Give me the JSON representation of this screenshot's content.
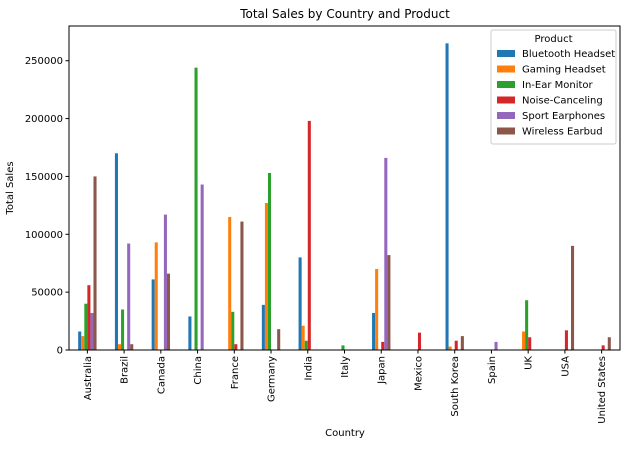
{
  "chart_data": {
    "type": "bar",
    "title": "Total Sales by Country and Product",
    "xlabel": "Country",
    "ylabel": "Total Sales",
    "ylim": [
      0,
      280000
    ],
    "yticks": [
      0,
      50000,
      100000,
      150000,
      200000,
      250000
    ],
    "ytick_labels": [
      "0",
      "50000",
      "100000",
      "150000",
      "200000",
      "250000"
    ],
    "grid": false,
    "legend_title": "Product",
    "legend_position": "top-right",
    "categories": [
      "Australia",
      "Brazil",
      "Canada",
      "China",
      "France",
      "Germany",
      "India",
      "Italy",
      "Japan",
      "Mexico",
      "South Korea",
      "Spain",
      "UK",
      "USA",
      "United States"
    ],
    "series": [
      {
        "name": "Bluetooth Headset",
        "color": "#1f77b4",
        "values": [
          16000,
          170000,
          61000,
          29000,
          0,
          39000,
          80000,
          0,
          32000,
          0,
          265000,
          0,
          0,
          0,
          0
        ]
      },
      {
        "name": "Gaming Headset",
        "color": "#ff7f0e",
        "values": [
          12000,
          5000,
          93000,
          0,
          115000,
          127000,
          21000,
          0,
          70000,
          0,
          3000,
          0,
          16000,
          0,
          0
        ]
      },
      {
        "name": "In-Ear Monitor",
        "color": "#2ca02c",
        "values": [
          40000,
          35000,
          0,
          244000,
          33000,
          153000,
          8000,
          4000,
          0,
          0,
          0,
          0,
          43000,
          0,
          0
        ]
      },
      {
        "name": "Noise-Canceling",
        "color": "#d62728",
        "values": [
          56000,
          0,
          0,
          0,
          5000,
          0,
          198000,
          0,
          7000,
          15000,
          8000,
          0,
          11000,
          17000,
          4000
        ]
      },
      {
        "name": "Sport Earphones",
        "color": "#9467bd",
        "values": [
          32000,
          92000,
          117000,
          143000,
          0,
          0,
          0,
          0,
          166000,
          0,
          0,
          7000,
          0,
          0,
          0
        ]
      },
      {
        "name": "Wireless Earbud",
        "color": "#8c564b",
        "values": [
          150000,
          5000,
          66000,
          0,
          111000,
          18000,
          0,
          0,
          82000,
          0,
          12000,
          0,
          0,
          90000,
          11000
        ]
      }
    ]
  }
}
